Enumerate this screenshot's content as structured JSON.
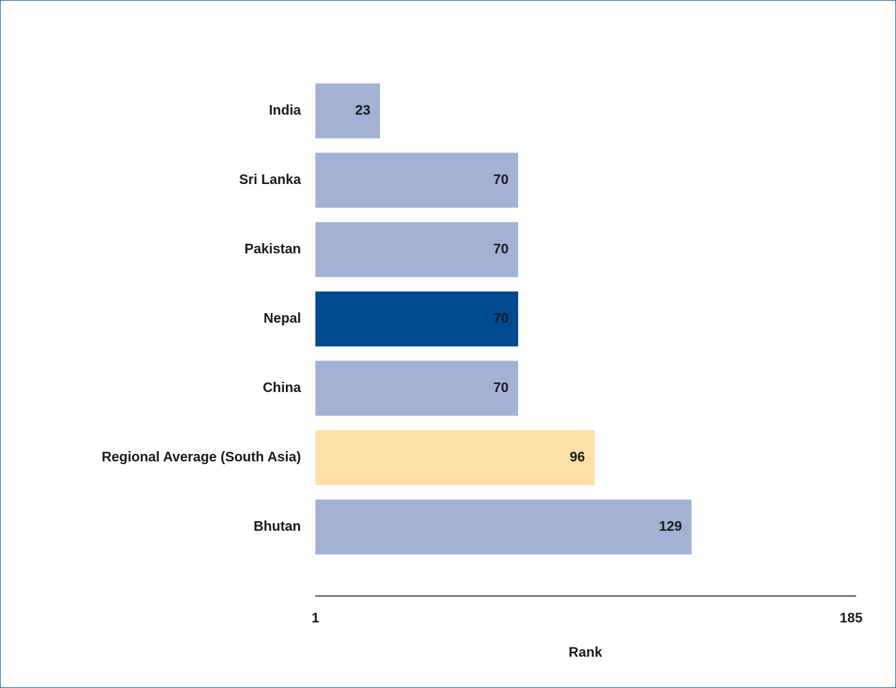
{
  "chart_data": {
    "type": "barh",
    "categories": [
      "India",
      "Sri Lanka",
      "Pakistan",
      "Nepal",
      "China",
      "Regional Average (South Asia)",
      "Bhutan"
    ],
    "values": [
      23,
      70,
      70,
      70,
      70,
      96,
      129
    ],
    "colors": [
      "#a3b1d4",
      "#a3b1d4",
      "#a3b1d4",
      "#004a8f",
      "#a3b1d4",
      "#fde0a8",
      "#a3b1d4"
    ],
    "xlabel": "Rank",
    "xlim": [
      1,
      185
    ],
    "xticks": [
      1,
      185
    ]
  }
}
